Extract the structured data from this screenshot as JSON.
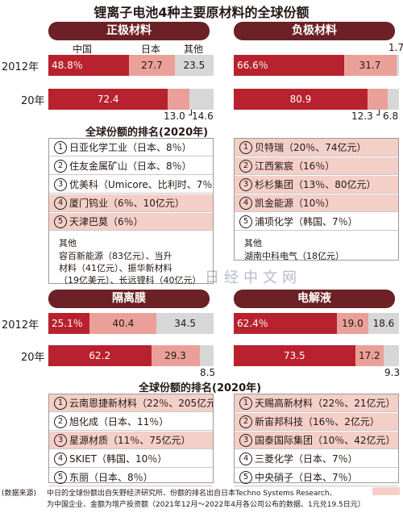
{
  "title": "锂离子电池4种主要原材料的全球份额",
  "colors": {
    "dark": "#b8222e",
    "pink": "#eaa098",
    "gray": "#d7d7d7",
    "pill": "#6b2125",
    "highlight": "#f4cfc8"
  },
  "chart_data": [
    {
      "type": "bar",
      "stacked": true,
      "orientation": "horizontal",
      "title": "正极材料",
      "categories": [
        "2012年",
        "20年"
      ],
      "series": [
        {
          "name": "中国",
          "values": [
            48.8,
            72.4
          ]
        },
        {
          "name": "日本",
          "values": [
            27.7,
            13.0
          ]
        },
        {
          "name": "其他",
          "values": [
            23.5,
            14.6
          ]
        }
      ],
      "value_labels": [
        [
          "48.8％",
          "27.7",
          "23.5"
        ],
        [
          "72.4",
          "13.0",
          "14.6"
        ]
      ],
      "xlim": [
        0,
        100
      ]
    },
    {
      "type": "bar",
      "stacked": true,
      "orientation": "horizontal",
      "title": "负极材料",
      "categories": [
        "2012年",
        "20年"
      ],
      "series": [
        {
          "name": "中国",
          "values": [
            66.6,
            80.9
          ]
        },
        {
          "name": "日本",
          "values": [
            31.7,
            12.3
          ]
        },
        {
          "name": "其他",
          "values": [
            1.7,
            6.8
          ]
        }
      ],
      "value_labels": [
        [
          "66.6％",
          "31.7",
          "1.7"
        ],
        [
          "80.9",
          "12.3",
          "6.8"
        ]
      ],
      "xlim": [
        0,
        100
      ]
    },
    {
      "type": "bar",
      "stacked": true,
      "orientation": "horizontal",
      "title": "隔离膜",
      "categories": [
        "2012年",
        "20年"
      ],
      "series": [
        {
          "name": "中国",
          "values": [
            25.1,
            62.2
          ]
        },
        {
          "name": "日本",
          "values": [
            40.4,
            29.3
          ]
        },
        {
          "name": "其他",
          "values": [
            34.5,
            8.5
          ]
        }
      ],
      "value_labels": [
        [
          "25.1％",
          "40.4",
          "34.5"
        ],
        [
          "62.2",
          "29.3",
          "8.5"
        ]
      ],
      "xlim": [
        0,
        100
      ]
    },
    {
      "type": "bar",
      "stacked": true,
      "orientation": "horizontal",
      "title": "电解液",
      "categories": [
        "2012年",
        "20年"
      ],
      "series": [
        {
          "name": "中国",
          "values": [
            62.4,
            73.5
          ]
        },
        {
          "name": "日本",
          "values": [
            19.0,
            17.2
          ]
        },
        {
          "name": "其他",
          "values": [
            18.6,
            9.3
          ]
        }
      ],
      "value_labels": [
        [
          "62.4％",
          "19.0",
          "18.6"
        ],
        [
          "73.5",
          "17.2",
          "9.3"
        ]
      ],
      "xlim": [
        0,
        100
      ]
    }
  ],
  "legend": {
    "china": "中国",
    "japan": "日本",
    "other": "其他"
  },
  "rankings": [
    {
      "title": "全球份额的排名(2020年)",
      "left": [
        {
          "num": "①",
          "text": "日亚化学工业（日本、8％）",
          "hl": false
        },
        {
          "num": "②",
          "text": "住友金属矿山（日本、8％）",
          "hl": false
        },
        {
          "num": "③",
          "text": "优美科（Umicore、比利时、7％）",
          "hl": false
        },
        {
          "num": "④",
          "text": "厦门钨业（6％、10亿元）",
          "hl": true
        },
        {
          "num": "⑤",
          "text": "天津巴莫（6％）",
          "hl": true
        }
      ],
      "left_others_head": "其他",
      "left_others": [
        "容百新能源（83亿元）、当升",
        "材料（41亿元）、振华新材料",
        "（19亿美元）、长远锂科（40亿元）"
      ],
      "right": [
        {
          "num": "①",
          "text": "贝特瑞（20％、74亿元）",
          "hl": true
        },
        {
          "num": "②",
          "text": "江西紫宸（16％）",
          "hl": true
        },
        {
          "num": "③",
          "text": "杉杉集团（13％、80亿元）",
          "hl": true
        },
        {
          "num": "④",
          "text": "凯金能源（10％）",
          "hl": true
        },
        {
          "num": "⑤",
          "text": "浦项化学（韩国、7％）",
          "hl": false
        }
      ],
      "right_others_head": "其他",
      "right_others": [
        "湖南中科电气（18亿元）"
      ]
    },
    {
      "title": "全球份额的排名(2020年)",
      "left": [
        {
          "num": "①",
          "text": "云南恩捷新材料（22％、205亿元）",
          "hl": true
        },
        {
          "num": "②",
          "text": "旭化成（日本、11％）",
          "hl": false
        },
        {
          "num": "③",
          "text": "星源材质（11％、75亿元）",
          "hl": true
        },
        {
          "num": "④",
          "text": "SKIET（韩国、10％）",
          "hl": false
        },
        {
          "num": "⑤",
          "text": "东丽（日本、8％）",
          "hl": false
        }
      ],
      "right": [
        {
          "num": "①",
          "text": "天赐高新材料（22％、21亿元）",
          "hl": true
        },
        {
          "num": "②",
          "text": "新宙邦科技（16％、2亿元）",
          "hl": true
        },
        {
          "num": "③",
          "text": "国泰国际集团（10％、42亿元）",
          "hl": true
        },
        {
          "num": "④",
          "text": "三菱化学（日本、7％）",
          "hl": false
        },
        {
          "num": "⑤",
          "text": "中央硝子（日本、7％）",
          "hl": false
        }
      ]
    }
  ],
  "watermark": "日经中文网",
  "footer": {
    "source": "(数据来源)",
    "line1": "中日的全球份额出自矢野经济研究所、份额的排名出自日本Techno Systems Research、",
    "line2": "为中国企业、金额为增产投资额（2021年12月～2022年4月各公司公布的数据、1元兑19.5日元）"
  }
}
